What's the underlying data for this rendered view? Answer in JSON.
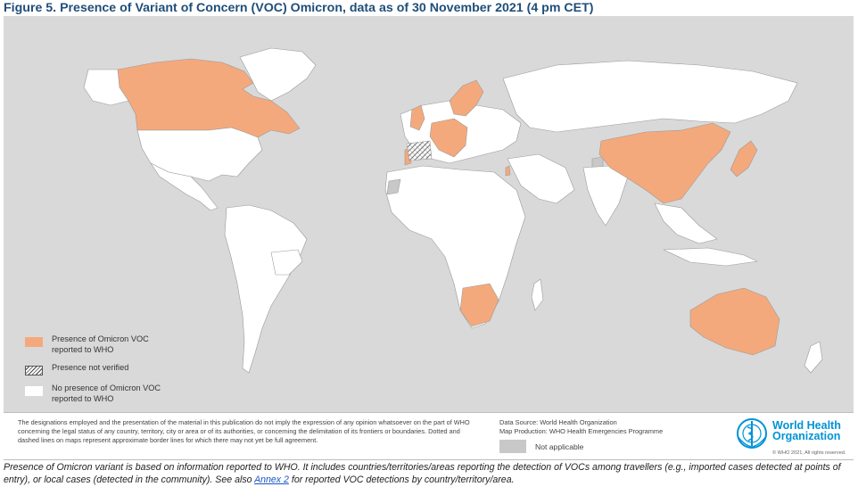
{
  "title": "Figure 5. Presence of Variant of Concern (VOC) Omicron, data as of 30 November 2021 (4 pm CET)",
  "colors": {
    "presence": "#f4a97c",
    "no_presence": "#ffffff",
    "not_applicable": "#c8c8c8",
    "background": "#d9d9d9",
    "title": "#1f4e79",
    "who_blue": "#0093d5"
  },
  "legend": {
    "presence": "Presence of Omicron VOC reported to WHO",
    "not_verified": "Presence not verified",
    "no_presence": "No presence of Omicron VOC reported to WHO"
  },
  "footer": {
    "disclaimer": "The designations employed and the presentation of the material in this publication do not imply the expression of any opinion whatsoever on the part of WHO concerning the legal status of any country, territory, city or area or of its authorities, or concerning the delimitation of its frontiers or boundaries. Dotted and dashed lines on maps represent approximate border lines for which there may not yet be full agreement.",
    "data_source": "Data Source: World Health Organization",
    "map_production": "Map Production: WHO Health Emergencies Programme",
    "not_applicable": "Not applicable",
    "who_line1": "World Health",
    "who_line2": "Organization",
    "copyright": "© WHO 2021, All rights reserved."
  },
  "caption": {
    "before_link": "Presence of Omicron variant is based on information reported to WHO. It includes countries/territories/areas reporting the detection of VOCs among travellers (e.g., imported cases detected at points of entry), or local cases (detected in the community). See also ",
    "link_text": "Annex 2",
    "after_link": " for reported VOC detections by country/territory/area."
  }
}
